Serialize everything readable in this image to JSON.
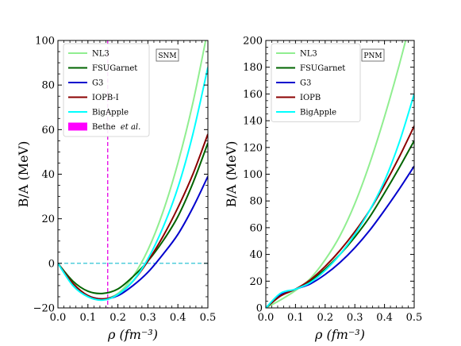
{
  "chart_data": [
    {
      "type": "line",
      "tag": "SNM",
      "xlabel": "ρ (fm⁻³)",
      "ylabel": "B/A (MeV)",
      "xlim": [
        0.0,
        0.5
      ],
      "ylim": [
        -20,
        100
      ],
      "xticks": [
        "0.0",
        "0.1",
        "0.2",
        "0.3",
        "0.4",
        "0.5"
      ],
      "yticks": [
        "−20",
        "0",
        "20",
        "40",
        "60",
        "80",
        "100"
      ],
      "legend_position": "top-left",
      "zero_line": {
        "y": 0,
        "color": "#17becf",
        "style": "dashed"
      },
      "saturation_line": {
        "x": 0.166,
        "color": "#e600e6",
        "style": "dashed",
        "label": "Bethe et al."
      },
      "saturation_box": {
        "x": [
          0.16,
          0.17
        ],
        "y": [
          -16.5,
          -15.5
        ],
        "color": "#ff00ff"
      },
      "series": [
        {
          "name": "NL3",
          "color": "#90ee90",
          "x": [
            0.0,
            0.05,
            0.1,
            0.15,
            0.2,
            0.25,
            0.3,
            0.35,
            0.4,
            0.45,
            0.5
          ],
          "y": [
            0.0,
            -9.0,
            -14.5,
            -16.0,
            -13.5,
            -6.0,
            6.0,
            23.0,
            45.0,
            72.0,
            105.0
          ]
        },
        {
          "name": "FSUGarnet",
          "color": "#006400",
          "x": [
            0.0,
            0.05,
            0.1,
            0.15,
            0.2,
            0.25,
            0.3,
            0.35,
            0.4,
            0.45,
            0.5
          ],
          "y": [
            0.0,
            -8.0,
            -12.5,
            -13.5,
            -11.5,
            -6.0,
            1.0,
            10.0,
            21.0,
            36.0,
            54.0
          ]
        },
        {
          "name": "G3",
          "color": "#0000cd",
          "x": [
            0.0,
            0.05,
            0.1,
            0.15,
            0.2,
            0.25,
            0.3,
            0.35,
            0.4,
            0.45,
            0.5
          ],
          "y": [
            0.0,
            -9.5,
            -14.5,
            -16.0,
            -14.5,
            -10.0,
            -4.0,
            4.0,
            13.0,
            25.0,
            39.0
          ]
        },
        {
          "name": "IOPB-I",
          "color": "#8b0000",
          "x": [
            0.0,
            0.05,
            0.1,
            0.15,
            0.2,
            0.25,
            0.3,
            0.35,
            0.4,
            0.45,
            0.5
          ],
          "y": [
            0.0,
            -9.0,
            -14.5,
            -16.0,
            -14.0,
            -8.0,
            1.0,
            12.0,
            25.0,
            40.0,
            58.0
          ]
        },
        {
          "name": "BigApple",
          "color": "#00ffff",
          "x": [
            0.0,
            0.05,
            0.1,
            0.15,
            0.2,
            0.25,
            0.3,
            0.35,
            0.4,
            0.45,
            0.5
          ],
          "y": [
            0.0,
            -10.0,
            -15.0,
            -16.5,
            -14.0,
            -8.0,
            2.0,
            16.0,
            34.0,
            58.0,
            88.0
          ]
        }
      ],
      "legend_extra": {
        "name": "Bethe",
        "name_italic": "et al.",
        "color": "#ff00ff"
      }
    },
    {
      "type": "line",
      "tag": "PNM",
      "xlabel": "ρ (fm⁻³)",
      "ylabel": "B/A (MeV)",
      "xlim": [
        0.0,
        0.5
      ],
      "ylim": [
        0,
        200
      ],
      "xticks": [
        "0.0",
        "0.1",
        "0.2",
        "0.3",
        "0.4",
        "0.5"
      ],
      "yticks": [
        "0",
        "20",
        "40",
        "60",
        "80",
        "100",
        "120",
        "140",
        "160",
        "180",
        "200"
      ],
      "legend_position": "top-left",
      "series": [
        {
          "name": "NL3",
          "color": "#90ee90",
          "x": [
            0.0,
            0.05,
            0.1,
            0.15,
            0.2,
            0.25,
            0.3,
            0.35,
            0.4,
            0.45,
            0.5
          ],
          "y": [
            0.0,
            6.0,
            13.0,
            22.0,
            36.0,
            54.0,
            78.0,
            108.0,
            143.0,
            182.0,
            225.0
          ]
        },
        {
          "name": "FSUGarnet",
          "color": "#006400",
          "x": [
            0.0,
            0.05,
            0.1,
            0.15,
            0.2,
            0.25,
            0.3,
            0.35,
            0.4,
            0.45,
            0.5
          ],
          "y": [
            0.0,
            9.0,
            14.0,
            20.0,
            29.0,
            40.0,
            53.0,
            68.0,
            86.0,
            105.0,
            125.0
          ]
        },
        {
          "name": "G3",
          "color": "#0000cd",
          "x": [
            0.0,
            0.05,
            0.1,
            0.15,
            0.2,
            0.25,
            0.3,
            0.35,
            0.4,
            0.45,
            0.5
          ],
          "y": [
            0.0,
            10.0,
            14.0,
            18.0,
            25.0,
            34.0,
            45.0,
            58.0,
            73.0,
            89.0,
            106.0
          ]
        },
        {
          "name": "IOPB",
          "color": "#8b0000",
          "x": [
            0.0,
            0.05,
            0.1,
            0.15,
            0.2,
            0.25,
            0.3,
            0.35,
            0.4,
            0.45,
            0.5
          ],
          "y": [
            0.0,
            9.0,
            14.0,
            21.0,
            31.0,
            43.0,
            57.0,
            73.0,
            92.0,
            113.0,
            136.0
          ]
        },
        {
          "name": "BigApple",
          "color": "#00ffff",
          "x": [
            0.0,
            0.05,
            0.1,
            0.15,
            0.2,
            0.25,
            0.3,
            0.35,
            0.4,
            0.45,
            0.5
          ],
          "y": [
            0.0,
            11.0,
            14.0,
            19.0,
            28.0,
            40.0,
            55.0,
            73.0,
            95.0,
            124.0,
            160.0
          ]
        }
      ]
    }
  ]
}
